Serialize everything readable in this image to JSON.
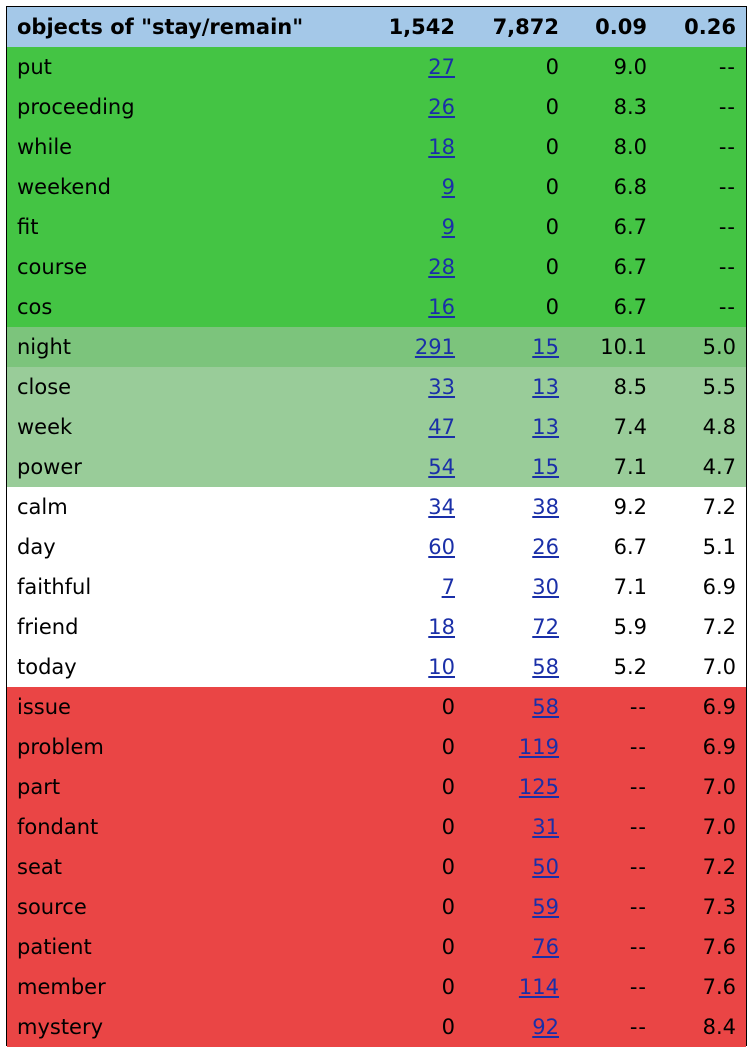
{
  "header": {
    "title": "objects of \"stay/remain\"",
    "total1": "1,542",
    "total2": "7,872",
    "score1": "0.09",
    "score2": "0.26"
  },
  "colors": {
    "header": "#a4c8e8",
    "strong_green": "#44c444",
    "mid_green": "#7cc47c",
    "light_green": "#99cc99",
    "white": "#ffffff",
    "red": "#ea4545",
    "link": "#1a2fa8"
  },
  "rows": [
    {
      "word": "put",
      "n1": "27",
      "n2": "0",
      "s1": "9.0",
      "s2": "--",
      "band": "strong",
      "n1_link": true,
      "n2_link": false
    },
    {
      "word": "proceeding",
      "n1": "26",
      "n2": "0",
      "s1": "8.3",
      "s2": "--",
      "band": "strong",
      "n1_link": true,
      "n2_link": false
    },
    {
      "word": "while",
      "n1": "18",
      "n2": "0",
      "s1": "8.0",
      "s2": "--",
      "band": "strong",
      "n1_link": true,
      "n2_link": false
    },
    {
      "word": "weekend",
      "n1": "9",
      "n2": "0",
      "s1": "6.8",
      "s2": "--",
      "band": "strong",
      "n1_link": true,
      "n2_link": false
    },
    {
      "word": "fit",
      "n1": "9",
      "n2": "0",
      "s1": "6.7",
      "s2": "--",
      "band": "strong",
      "n1_link": true,
      "n2_link": false
    },
    {
      "word": "course",
      "n1": "28",
      "n2": "0",
      "s1": "6.7",
      "s2": "--",
      "band": "strong",
      "n1_link": true,
      "n2_link": false
    },
    {
      "word": "cos",
      "n1": "16",
      "n2": "0",
      "s1": "6.7",
      "s2": "--",
      "band": "strong",
      "n1_link": true,
      "n2_link": false
    },
    {
      "word": "night",
      "n1": "291",
      "n2": "15",
      "s1": "10.1",
      "s2": "5.0",
      "band": "mid",
      "n1_link": true,
      "n2_link": true
    },
    {
      "word": "close",
      "n1": "33",
      "n2": "13",
      "s1": "8.5",
      "s2": "5.5",
      "band": "light",
      "n1_link": true,
      "n2_link": true
    },
    {
      "word": "week",
      "n1": "47",
      "n2": "13",
      "s1": "7.4",
      "s2": "4.8",
      "band": "light",
      "n1_link": true,
      "n2_link": true
    },
    {
      "word": "power",
      "n1": "54",
      "n2": "15",
      "s1": "7.1",
      "s2": "4.7",
      "band": "light",
      "n1_link": true,
      "n2_link": true
    },
    {
      "word": "calm",
      "n1": "34",
      "n2": "38",
      "s1": "9.2",
      "s2": "7.2",
      "band": "none",
      "n1_link": true,
      "n2_link": true
    },
    {
      "word": "day",
      "n1": "60",
      "n2": "26",
      "s1": "6.7",
      "s2": "5.1",
      "band": "none",
      "n1_link": true,
      "n2_link": true
    },
    {
      "word": "faithful",
      "n1": "7",
      "n2": "30",
      "s1": "7.1",
      "s2": "6.9",
      "band": "none",
      "n1_link": true,
      "n2_link": true
    },
    {
      "word": "friend",
      "n1": "18",
      "n2": "72",
      "s1": "5.9",
      "s2": "7.2",
      "band": "none",
      "n1_link": true,
      "n2_link": true
    },
    {
      "word": "today",
      "n1": "10",
      "n2": "58",
      "s1": "5.2",
      "s2": "7.0",
      "band": "none",
      "n1_link": true,
      "n2_link": true
    },
    {
      "word": "issue",
      "n1": "0",
      "n2": "58",
      "s1": "--",
      "s2": "6.9",
      "band": "red",
      "n1_link": false,
      "n2_link": true
    },
    {
      "word": "problem",
      "n1": "0",
      "n2": "119",
      "s1": "--",
      "s2": "6.9",
      "band": "red",
      "n1_link": false,
      "n2_link": true
    },
    {
      "word": "part",
      "n1": "0",
      "n2": "125",
      "s1": "--",
      "s2": "7.0",
      "band": "red",
      "n1_link": false,
      "n2_link": true
    },
    {
      "word": "fondant",
      "n1": "0",
      "n2": "31",
      "s1": "--",
      "s2": "7.0",
      "band": "red",
      "n1_link": false,
      "n2_link": true
    },
    {
      "word": "seat",
      "n1": "0",
      "n2": "50",
      "s1": "--",
      "s2": "7.2",
      "band": "red",
      "n1_link": false,
      "n2_link": true
    },
    {
      "word": "source",
      "n1": "0",
      "n2": "59",
      "s1": "--",
      "s2": "7.3",
      "band": "red",
      "n1_link": false,
      "n2_link": true
    },
    {
      "word": "patient",
      "n1": "0",
      "n2": "76",
      "s1": "--",
      "s2": "7.6",
      "band": "red",
      "n1_link": false,
      "n2_link": true
    },
    {
      "word": "member",
      "n1": "0",
      "n2": "114",
      "s1": "--",
      "s2": "7.6",
      "band": "red",
      "n1_link": false,
      "n2_link": true
    },
    {
      "word": "mystery",
      "n1": "0",
      "n2": "92",
      "s1": "--",
      "s2": "8.4",
      "band": "red",
      "n1_link": false,
      "n2_link": true
    }
  ]
}
